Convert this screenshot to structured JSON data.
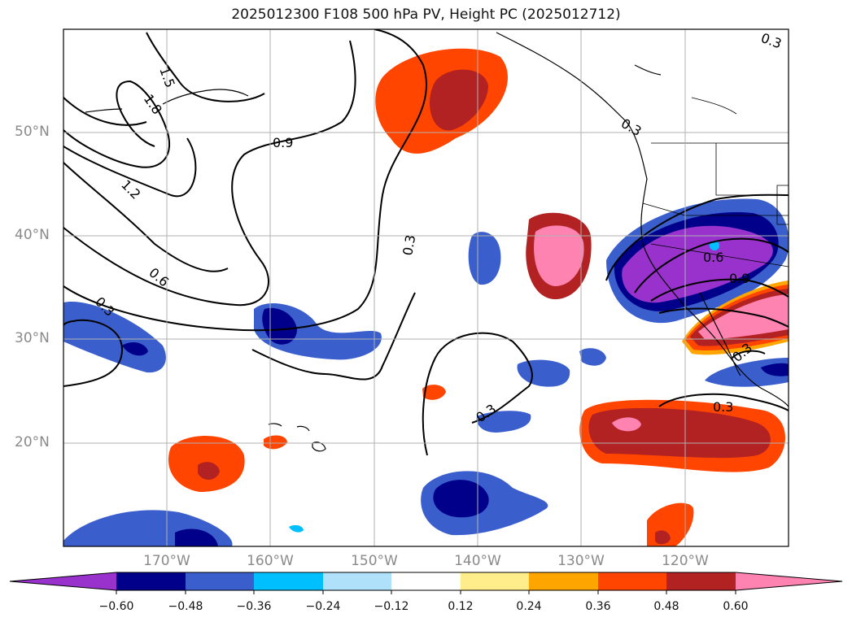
{
  "title": "2025012300 F108 500 hPa PV, Height PC (2025012712)",
  "latitude_labels": [
    "50°N",
    "40°N",
    "30°N",
    "20°N"
  ],
  "longitude_labels": [
    "170°W",
    "160°W",
    "150°W",
    "140°W",
    "130°W",
    "120°W"
  ],
  "colorbar": {
    "ticks": [
      "−0.60",
      "−0.48",
      "−0.36",
      "−0.24",
      "−0.12",
      "0.12",
      "0.24",
      "0.36",
      "0.48",
      "0.60"
    ],
    "colors": [
      "#9932cc",
      "#00008b",
      "#3a5fcd",
      "#00bfff",
      "#afe2fa",
      "#ffffff",
      "#ffec8b",
      "#ffa500",
      "#ff4500",
      "#b22222",
      "#ff83b0"
    ]
  },
  "contour_labels": [
    "1.5",
    "1.8",
    "1.2",
    "0.6",
    "0.3",
    "0.9",
    "0.3",
    "0.3",
    "0.3",
    "0.3",
    "0.6",
    "0.9",
    "0.3",
    "0.3"
  ]
}
